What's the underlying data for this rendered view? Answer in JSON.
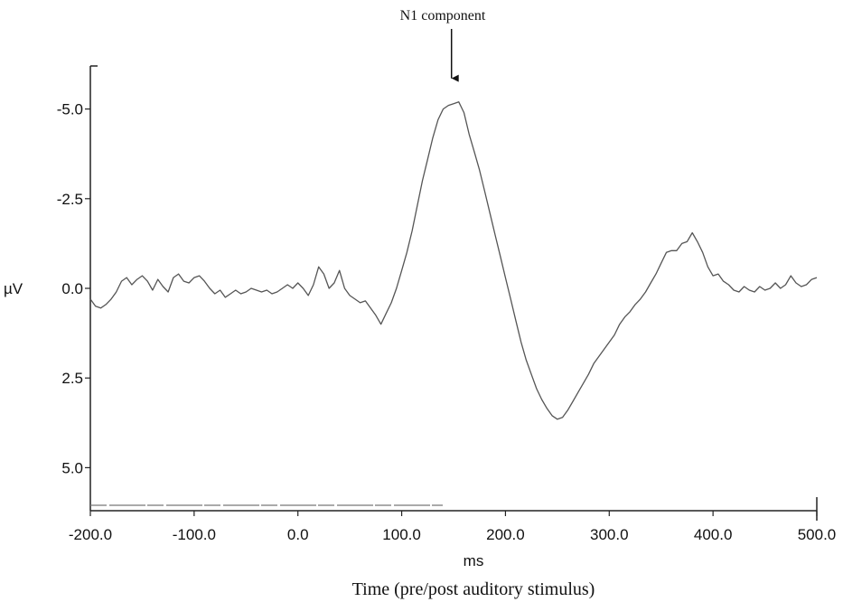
{
  "chart_data": {
    "type": "line",
    "annotation": {
      "text": "N1 component",
      "x": 148,
      "y": -5.2
    },
    "xlabel": "ms",
    "caption": "Time (pre/post auditory stimulus)",
    "ylabel": "µV",
    "xlim": [
      -200,
      500
    ],
    "ylim": [
      -6.2,
      6.2
    ],
    "y_inverted": true,
    "grid": false,
    "x_ticks": [
      {
        "value": -200,
        "label": "-200.0"
      },
      {
        "value": -100,
        "label": "-100.0"
      },
      {
        "value": 0,
        "label": "0.0"
      },
      {
        "value": 100,
        "label": "100.0"
      },
      {
        "value": 200,
        "label": "200.0"
      },
      {
        "value": 300,
        "label": "300.0"
      },
      {
        "value": 400,
        "label": "400.0"
      },
      {
        "value": 500,
        "label": "500.0"
      }
    ],
    "y_ticks": [
      {
        "value": -5,
        "label": "-5.0"
      },
      {
        "value": -2.5,
        "label": "-2.5"
      },
      {
        "value": 0,
        "label": "0.0"
      },
      {
        "value": 2.5,
        "label": "2.5"
      },
      {
        "value": 5,
        "label": "5.0"
      }
    ],
    "series": [
      {
        "color": "#555555",
        "points": [
          [
            -200,
            0.3
          ],
          [
            -195,
            0.5
          ],
          [
            -190,
            0.55
          ],
          [
            -185,
            0.45
          ],
          [
            -180,
            0.3
          ],
          [
            -175,
            0.1
          ],
          [
            -170,
            -0.2
          ],
          [
            -165,
            -0.3
          ],
          [
            -160,
            -0.1
          ],
          [
            -155,
            -0.25
          ],
          [
            -150,
            -0.35
          ],
          [
            -145,
            -0.2
          ],
          [
            -140,
            0.05
          ],
          [
            -135,
            -0.25
          ],
          [
            -130,
            -0.05
          ],
          [
            -125,
            0.1
          ],
          [
            -120,
            -0.3
          ],
          [
            -115,
            -0.4
          ],
          [
            -110,
            -0.2
          ],
          [
            -105,
            -0.15
          ],
          [
            -100,
            -0.3
          ],
          [
            -95,
            -0.35
          ],
          [
            -90,
            -0.2
          ],
          [
            -85,
            0.0
          ],
          [
            -80,
            0.15
          ],
          [
            -75,
            0.05
          ],
          [
            -70,
            0.25
          ],
          [
            -65,
            0.15
          ],
          [
            -60,
            0.05
          ],
          [
            -55,
            0.15
          ],
          [
            -50,
            0.1
          ],
          [
            -45,
            0.0
          ],
          [
            -40,
            0.05
          ],
          [
            -35,
            0.1
          ],
          [
            -30,
            0.05
          ],
          [
            -25,
            0.15
          ],
          [
            -20,
            0.1
          ],
          [
            -15,
            0.0
          ],
          [
            -10,
            -0.1
          ],
          [
            -5,
            0.0
          ],
          [
            0,
            -0.15
          ],
          [
            5,
            0.0
          ],
          [
            10,
            0.2
          ],
          [
            15,
            -0.1
          ],
          [
            20,
            -0.6
          ],
          [
            25,
            -0.4
          ],
          [
            30,
            0.0
          ],
          [
            35,
            -0.15
          ],
          [
            40,
            -0.5
          ],
          [
            45,
            0.0
          ],
          [
            50,
            0.2
          ],
          [
            55,
            0.3
          ],
          [
            60,
            0.4
          ],
          [
            65,
            0.35
          ],
          [
            70,
            0.55
          ],
          [
            75,
            0.75
          ],
          [
            80,
            1.0
          ],
          [
            85,
            0.7
          ],
          [
            90,
            0.4
          ],
          [
            95,
            0.0
          ],
          [
            100,
            -0.5
          ],
          [
            105,
            -1.0
          ],
          [
            110,
            -1.6
          ],
          [
            115,
            -2.3
          ],
          [
            120,
            -3.0
          ],
          [
            125,
            -3.6
          ],
          [
            130,
            -4.2
          ],
          [
            135,
            -4.7
          ],
          [
            140,
            -5.0
          ],
          [
            145,
            -5.1
          ],
          [
            150,
            -5.15
          ],
          [
            155,
            -5.2
          ],
          [
            160,
            -4.9
          ],
          [
            165,
            -4.3
          ],
          [
            170,
            -3.8
          ],
          [
            175,
            -3.3
          ],
          [
            180,
            -2.7
          ],
          [
            185,
            -2.1
          ],
          [
            190,
            -1.5
          ],
          [
            195,
            -0.9
          ],
          [
            200,
            -0.3
          ],
          [
            205,
            0.3
          ],
          [
            210,
            0.9
          ],
          [
            215,
            1.5
          ],
          [
            220,
            2.0
          ],
          [
            225,
            2.4
          ],
          [
            230,
            2.8
          ],
          [
            235,
            3.1
          ],
          [
            240,
            3.35
          ],
          [
            245,
            3.55
          ],
          [
            250,
            3.65
          ],
          [
            255,
            3.6
          ],
          [
            260,
            3.4
          ],
          [
            265,
            3.15
          ],
          [
            270,
            2.9
          ],
          [
            275,
            2.65
          ],
          [
            280,
            2.4
          ],
          [
            285,
            2.1
          ],
          [
            290,
            1.9
          ],
          [
            295,
            1.7
          ],
          [
            300,
            1.5
          ],
          [
            305,
            1.3
          ],
          [
            310,
            1.0
          ],
          [
            315,
            0.8
          ],
          [
            320,
            0.65
          ],
          [
            325,
            0.45
          ],
          [
            330,
            0.3
          ],
          [
            335,
            0.1
          ],
          [
            340,
            -0.15
          ],
          [
            345,
            -0.4
          ],
          [
            350,
            -0.7
          ],
          [
            355,
            -1.0
          ],
          [
            360,
            -1.05
          ],
          [
            365,
            -1.05
          ],
          [
            370,
            -1.25
          ],
          [
            375,
            -1.3
          ],
          [
            380,
            -1.55
          ],
          [
            385,
            -1.3
          ],
          [
            390,
            -1.0
          ],
          [
            395,
            -0.6
          ],
          [
            400,
            -0.35
          ],
          [
            405,
            -0.4
          ],
          [
            410,
            -0.2
          ],
          [
            415,
            -0.1
          ],
          [
            420,
            0.05
          ],
          [
            425,
            0.1
          ],
          [
            430,
            -0.05
          ],
          [
            435,
            0.05
          ],
          [
            440,
            0.1
          ],
          [
            445,
            -0.05
          ],
          [
            450,
            0.05
          ],
          [
            455,
            0.0
          ],
          [
            460,
            -0.15
          ],
          [
            465,
            0.0
          ],
          [
            470,
            -0.1
          ],
          [
            475,
            -0.35
          ],
          [
            480,
            -0.15
          ],
          [
            485,
            -0.05
          ],
          [
            490,
            -0.1
          ],
          [
            495,
            -0.25
          ],
          [
            500,
            -0.3
          ]
        ]
      }
    ]
  }
}
